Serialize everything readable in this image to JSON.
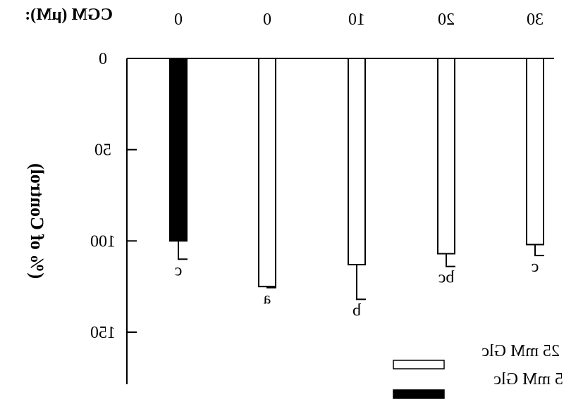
{
  "chart_data": {
    "type": "bar",
    "ylabel": "(% of Control)",
    "xlabel": "CGM (μM):",
    "ylim": [
      0,
      150
    ],
    "yticks": [
      "0",
      "50",
      "100",
      "150"
    ],
    "categories": [
      "0",
      "0",
      "10",
      "20",
      "30"
    ],
    "values": [
      100,
      125,
      113,
      107,
      102
    ],
    "errors": [
      10,
      0.6,
      19,
      7,
      6
    ],
    "significance": [
      "c",
      "a",
      "b",
      "bc",
      "c"
    ],
    "bar_series": [
      0,
      1,
      1,
      1,
      1
    ],
    "legend_position": "top-right",
    "series": [
      {
        "name": "5 mM Glc",
        "color": "#000000"
      },
      {
        "name": "25 mM Glc",
        "color": "#ffffff"
      }
    ]
  }
}
